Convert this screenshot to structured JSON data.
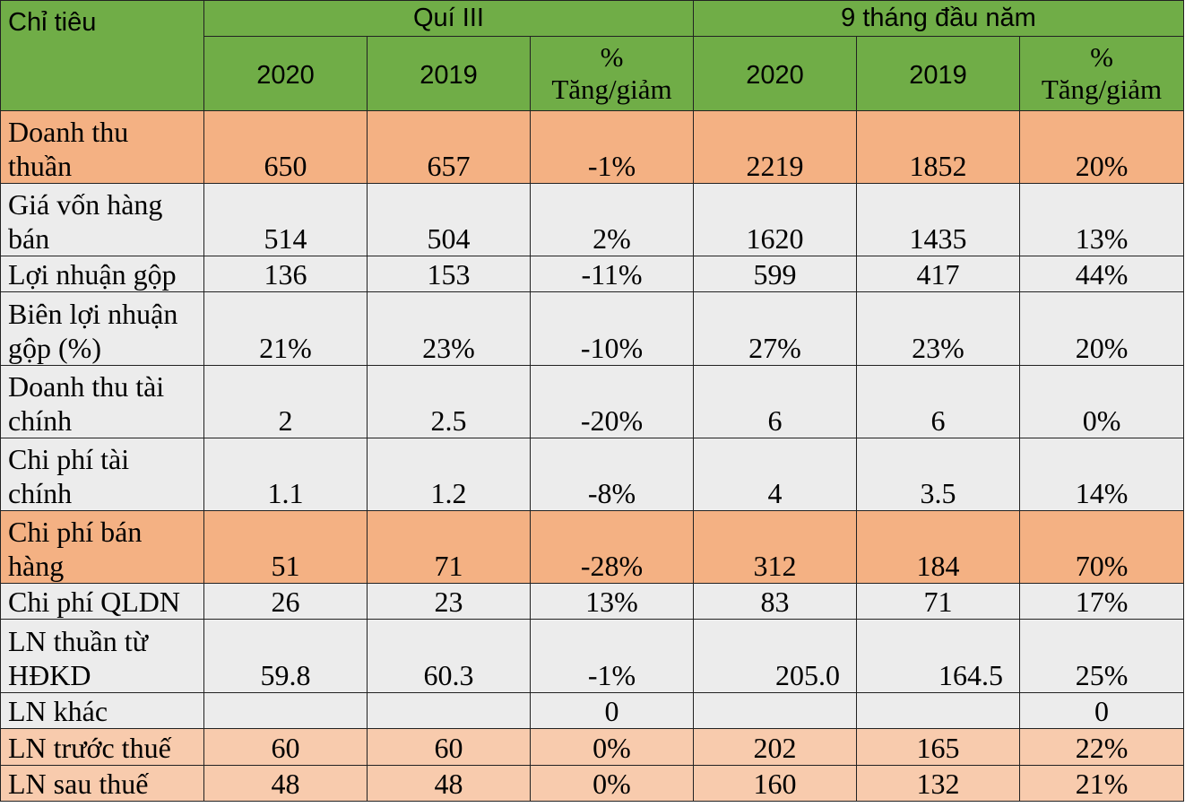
{
  "header": {
    "indicator_label": "Chỉ tiêu",
    "group_q3": "Quí III",
    "group_9m": "9 tháng đầu năm",
    "columns": [
      {
        "line1": "2020",
        "line2": ""
      },
      {
        "line1": "2019",
        "line2": ""
      },
      {
        "line1": "%",
        "line2": "Tăng/giảm"
      },
      {
        "line1": "2020",
        "line2": ""
      },
      {
        "line1": "2019",
        "line2": ""
      },
      {
        "line1": "%",
        "line2": "Tăng/giảm"
      }
    ]
  },
  "rows": [
    {
      "label_1": "Doanh thu",
      "label_2": "thuần",
      "values": [
        "650",
        "657",
        "-1%",
        "2219",
        "1852",
        "20%"
      ]
    },
    {
      "label_1": "Giá vốn hàng",
      "label_2": "bán",
      "values": [
        "514",
        "504",
        "2%",
        "1620",
        "1435",
        "13%"
      ]
    },
    {
      "label_1": "Lợi nhuận gộp",
      "label_2": "",
      "values": [
        "136",
        "153",
        "-11%",
        "599",
        "417",
        "44%"
      ]
    },
    {
      "label_1": "Biên lợi nhuận",
      "label_2": "gộp (%)",
      "values": [
        "21%",
        "23%",
        "-10%",
        "27%",
        "23%",
        "20%"
      ]
    },
    {
      "label_1": "Doanh thu tài",
      "label_2": "chính",
      "values": [
        "2",
        "2.5",
        "-20%",
        "6",
        "6",
        "0%"
      ]
    },
    {
      "label_1": "Chi phí tài",
      "label_2": "chính",
      "values": [
        "1.1",
        "1.2",
        "-8%",
        "4",
        "3.5",
        "14%"
      ]
    },
    {
      "label_1": "Chi phí bán",
      "label_2": "hàng",
      "values": [
        "51",
        "71",
        "-28%",
        "312",
        "184",
        "70%"
      ]
    },
    {
      "label_1": "Chi phí QLDN",
      "label_2": "",
      "values": [
        "26",
        "23",
        "13%",
        "83",
        "71",
        "17%"
      ]
    },
    {
      "label_1": "LN thuần từ",
      "label_2": "HĐKD",
      "values": [
        "59.8",
        "60.3",
        "-1%",
        "205.0",
        "164.5",
        "25%"
      ]
    },
    {
      "label_1": "LN khác",
      "label_2": "",
      "values": [
        "",
        "",
        "0",
        "",
        "",
        "0"
      ]
    },
    {
      "label_1": "LN trước thuế",
      "label_2": "",
      "values": [
        "60",
        "60",
        "0%",
        "202",
        "165",
        "22%"
      ]
    },
    {
      "label_1": "LN sau thuế",
      "label_2": "",
      "values": [
        "48",
        "48",
        "0%",
        "160",
        "132",
        "21%"
      ]
    }
  ],
  "colors": {
    "header_green": "#70ad47",
    "row_gray": "#ececec",
    "row_orange": "#f4b183",
    "row_light_orange": "#f8cbad"
  }
}
